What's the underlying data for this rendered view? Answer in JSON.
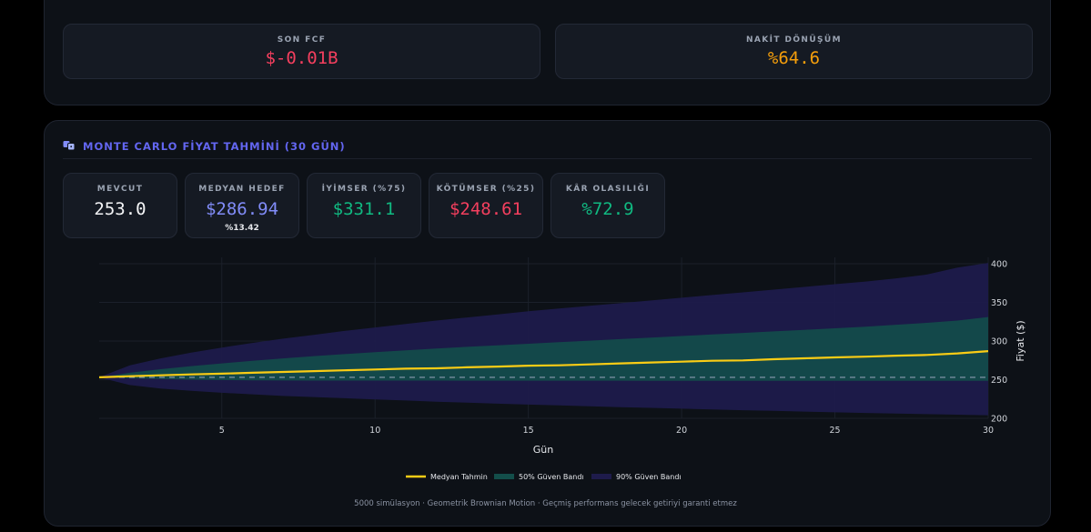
{
  "fcf_cards": [
    {
      "label": "SON FCF",
      "value": "$-0.01B",
      "color": "#f43f5e"
    },
    {
      "label": "NAKİT DÖNÜŞÜM",
      "value": "%64.6",
      "color": "#f59e0b"
    }
  ],
  "monte_carlo": {
    "title": "MONTE CARLO FİYAT TAHMİNİ (30 GÜN)",
    "icon": "dice-icon",
    "accent": "#6366f1",
    "stats": [
      {
        "label": "MEVCUT",
        "value": "253.0",
        "sub": "",
        "color": "#f3f4f6"
      },
      {
        "label": "MEDYAN HEDEF",
        "value": "$286.94",
        "sub": "%13.42",
        "color": "#818cf8"
      },
      {
        "label": "İYİMSER (%75)",
        "value": "$331.1",
        "sub": "",
        "color": "#10b981"
      },
      {
        "label": "KÖTÜMSER (%25)",
        "value": "$248.61",
        "sub": "",
        "color": "#f43f5e"
      },
      {
        "label": "KÂR OLASILIĞI",
        "value": "%72.9",
        "sub": "",
        "color": "#10b981"
      }
    ],
    "footnote": "5000 simülasyon · Geometrik Brownian Motion · Geçmiş performans gelecek getiriyi garanti etmez"
  },
  "chart_data": {
    "type": "area",
    "xlabel": "Gün",
    "ylabel": "Fiyat ($)",
    "xlim": [
      1,
      30
    ],
    "ylim": [
      200,
      400
    ],
    "xticks": [
      5,
      10,
      15,
      20,
      25,
      30
    ],
    "yticks": [
      200,
      250,
      300,
      350,
      400
    ],
    "y_axis_side": "right",
    "grid": true,
    "legend_position": "bottom",
    "reference_line": {
      "y": 253.0,
      "style": "dashed"
    },
    "x": [
      1,
      2,
      3,
      4,
      5,
      6,
      7,
      8,
      9,
      10,
      11,
      12,
      13,
      14,
      15,
      16,
      17,
      18,
      19,
      20,
      21,
      22,
      23,
      24,
      25,
      26,
      27,
      28,
      29,
      30
    ],
    "series": [
      {
        "name": "Medyan Tahmin",
        "type": "line",
        "color": "#facc15",
        "values": [
          253.0,
          254.5,
          255.7,
          256.8,
          257.8,
          258.9,
          260.0,
          261.0,
          262.1,
          263.2,
          264.2,
          264.7,
          266.0,
          267.0,
          268.1,
          268.6,
          269.8,
          271.0,
          272.2,
          273.3,
          274.5,
          275.0,
          276.5,
          277.6,
          278.8,
          279.8,
          281.0,
          282.0,
          284.0,
          286.9
        ]
      },
      {
        "name": "50% Güven Bandı",
        "type": "band",
        "color": "#134e4a",
        "lower": [
          253.0,
          251.8,
          250.8,
          250.0,
          249.5,
          249.2,
          249.0,
          248.8,
          248.8,
          248.8,
          248.8,
          248.8,
          248.7,
          248.7,
          248.7,
          248.7,
          248.7,
          248.7,
          248.6,
          248.6,
          248.6,
          248.6,
          248.6,
          248.6,
          248.6,
          248.6,
          248.6,
          248.6,
          248.6,
          248.6
        ],
        "upper": [
          253.0,
          259.0,
          263.5,
          267.5,
          271.0,
          274.5,
          277.5,
          280.5,
          283.0,
          285.5,
          288.0,
          290.3,
          292.5,
          294.5,
          296.5,
          298.5,
          300.5,
          302.5,
          304.5,
          306.5,
          308.5,
          310.5,
          312.5,
          314.5,
          316.5,
          318.5,
          321.0,
          323.5,
          326.5,
          331.1
        ]
      },
      {
        "name": "90% Güven Bandı",
        "type": "band",
        "color": "#1e1b4b",
        "lower": [
          253.0,
          243.0,
          238.5,
          235.5,
          233.0,
          231.0,
          229.0,
          227.5,
          226.0,
          224.5,
          223.0,
          221.5,
          220.2,
          219.0,
          217.8,
          216.7,
          215.6,
          214.5,
          213.5,
          212.5,
          211.5,
          210.5,
          209.6,
          208.7,
          207.8,
          207.0,
          206.2,
          205.4,
          204.7,
          204.0
        ],
        "upper": [
          253.0,
          268.5,
          277.5,
          285.0,
          291.5,
          297.5,
          303.0,
          308.0,
          313.0,
          317.5,
          322.0,
          326.5,
          330.5,
          334.5,
          338.5,
          342.0,
          345.5,
          349.0,
          352.5,
          356.0,
          359.5,
          363.0,
          366.5,
          370.0,
          373.5,
          377.0,
          381.0,
          386.0,
          395.0,
          401.0
        ]
      }
    ]
  }
}
